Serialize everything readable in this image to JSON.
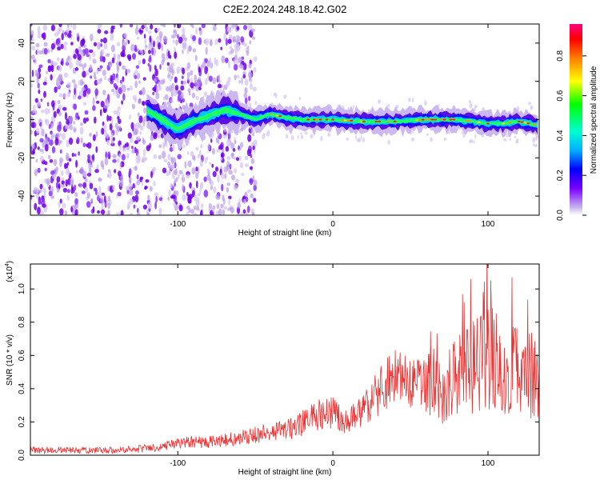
{
  "title": "C2E2.2024.248.18.42.G02",
  "chart_data": [
    {
      "type": "heatmap",
      "name": "spectrogram",
      "xlabel": "Height of straight line (km)",
      "ylabel": "Frequency (Hz)",
      "xlim": [
        -195,
        133
      ],
      "ylim": [
        -50,
        50
      ],
      "x_ticks": [
        -100,
        0,
        100
      ],
      "y_ticks": [
        -40,
        -20,
        0,
        20,
        40
      ],
      "colorbar": {
        "label": "Normalized spectral amplitude",
        "range": [
          0,
          0.96
        ],
        "ticks": [
          0.0,
          0.2,
          0.4,
          0.6,
          0.8
        ],
        "tick_labels": [
          "0.0",
          "0.2",
          "0.4",
          "0.6",
          "0.8"
        ],
        "colormap": [
          "#ffffff",
          "#c9b5ee",
          "#7a00ff",
          "#0000ff",
          "#00b0ff",
          "#00ffd0",
          "#00ff00",
          "#ffff00",
          "#ff8000",
          "#ff0000",
          "#ff0080"
        ]
      },
      "signal_ridge": {
        "x": [
          -120,
          -100,
          -90,
          -80,
          -70,
          -60,
          -50,
          -40,
          -30,
          -20,
          -10,
          0,
          20,
          40,
          60,
          80,
          100,
          110,
          120,
          133
        ],
        "y": [
          5,
          -5,
          -1,
          2,
          5,
          3,
          0,
          3,
          1,
          0,
          0,
          0,
          -1,
          -1,
          0,
          0,
          -2,
          -2,
          -1,
          -3
        ]
      },
      "noise_region_x": [
        -195,
        -50
      ]
    },
    {
      "type": "line",
      "name": "snr",
      "xlabel": "Height of straight line (km)",
      "ylabel": "SNR (10 * v/v)",
      "y_multiplier_label": "(x10",
      "y_multiplier_exp": "4",
      "y_multiplier_close": ")",
      "xlim": [
        -195,
        133
      ],
      "ylim": [
        0,
        1.15
      ],
      "x_ticks": [
        -100,
        0,
        100
      ],
      "y_ticks": [
        0.0,
        0.2,
        0.4,
        0.6,
        0.8,
        1.0
      ],
      "y_tick_labels": [
        "0.0",
        "0.2",
        "0.4",
        "0.6",
        "0.8",
        "1.0"
      ],
      "series": [
        {
          "color": "#ee3030",
          "x": [
            -195,
            -180,
            -160,
            -140,
            -120,
            -110,
            -100,
            -90,
            -80,
            -70,
            -60,
            -50,
            -40,
            -30,
            -20,
            -10,
            0,
            10,
            20,
            30,
            40,
            50,
            60,
            70,
            80,
            90,
            100,
            110,
            120,
            133
          ],
          "y": [
            0.03,
            0.03,
            0.03,
            0.03,
            0.04,
            0.05,
            0.07,
            0.08,
            0.08,
            0.09,
            0.11,
            0.12,
            0.14,
            0.15,
            0.19,
            0.24,
            0.26,
            0.2,
            0.29,
            0.38,
            0.47,
            0.42,
            0.44,
            0.38,
            0.45,
            0.52,
            0.58,
            0.55,
            0.52,
            0.5
          ]
        }
      ]
    }
  ]
}
